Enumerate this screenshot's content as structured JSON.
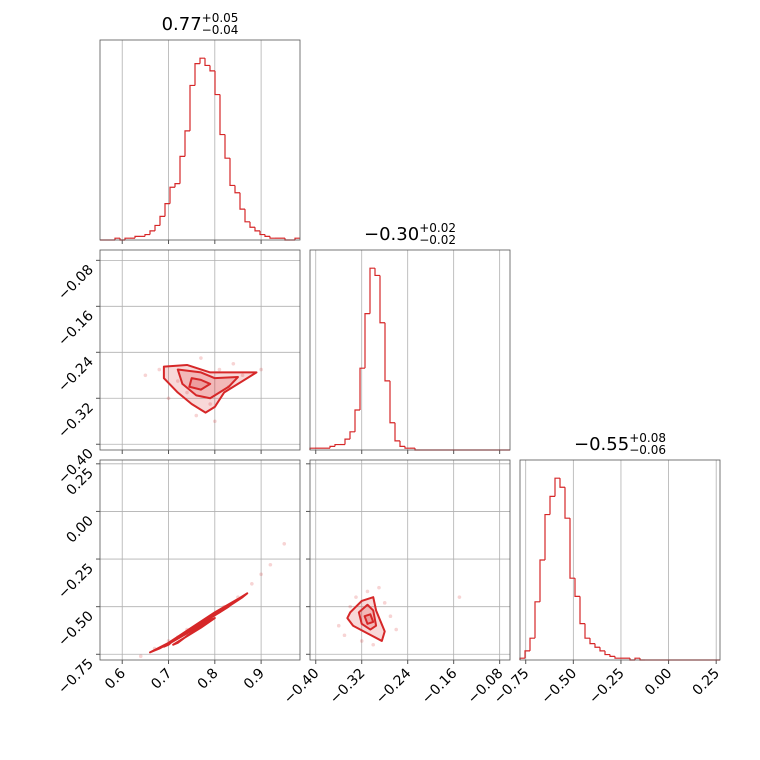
{
  "chart_data": {
    "type": "corner",
    "color": "#d62728",
    "grid": true,
    "hist_ylim": [
      0,
      110
    ],
    "params": [
      {
        "title": {
          "median": "0.77",
          "plus": "+0.05",
          "minus": "−0.04"
        },
        "lim": [
          0.552,
          0.984
        ],
        "ticks": [
          0.6,
          0.7,
          0.8,
          0.9
        ],
        "bins": [
          0.552,
          0.5628,
          0.5736,
          0.5844,
          0.5952,
          0.606,
          0.6168,
          0.6276,
          0.6384,
          0.6492,
          0.66,
          0.6708,
          0.6816,
          0.6924,
          0.7032,
          0.714,
          0.7248,
          0.7356,
          0.7464,
          0.7572,
          0.768,
          0.7788,
          0.7896,
          0.8004,
          0.8112,
          0.822,
          0.8328,
          0.8436,
          0.8544,
          0.8652,
          0.876,
          0.8868,
          0.8976,
          0.9084,
          0.9192,
          0.93,
          0.9408,
          0.9516,
          0.9624,
          0.9732,
          0.984
        ],
        "counts": [
          0,
          0,
          0,
          1,
          0,
          1,
          1,
          2,
          2,
          3,
          5,
          8,
          13,
          20,
          29,
          31,
          46,
          60,
          85,
          97,
          100,
          96,
          93,
          80,
          58,
          45,
          30,
          26,
          17,
          10,
          7,
          5,
          3,
          2,
          1,
          1,
          1,
          0,
          0,
          1
        ]
      },
      {
        "title": {
          "median": "−0.30",
          "plus": "+0.02",
          "minus": "−0.02"
        },
        "lim": [
          -0.41,
          -0.062
        ],
        "ticks": [
          {
            "value": -0.4,
            "label": "−0.40"
          },
          {
            "value": -0.32,
            "label": "−0.32"
          },
          {
            "value": -0.24,
            "label": "−0.24"
          },
          {
            "value": -0.16,
            "label": "−0.16"
          },
          {
            "value": -0.08,
            "label": "−0.08"
          }
        ],
        "bins": [
          -0.41,
          -0.4013,
          -0.3926,
          -0.3839,
          -0.3752,
          -0.3665,
          -0.3578,
          -0.3491,
          -0.3404,
          -0.3317,
          -0.323,
          -0.3143,
          -0.3056,
          -0.2969,
          -0.2882,
          -0.2795,
          -0.2708,
          -0.2621,
          -0.2534,
          -0.2447,
          -0.236,
          -0.2273,
          -0.2186,
          -0.2099,
          -0.2012,
          -0.1925,
          -0.1838,
          -0.1751,
          -0.1664,
          -0.1577,
          -0.149,
          -0.1403,
          -0.1316,
          -0.1229,
          -0.1142,
          -0.1055,
          -0.0968,
          -0.0881,
          -0.0794,
          -0.0707,
          -0.062
        ],
        "counts": [
          1,
          1,
          1,
          1,
          2,
          3,
          3,
          6,
          10,
          22,
          45,
          75,
          100,
          96,
          70,
          38,
          15,
          5,
          2,
          1,
          1,
          0,
          0,
          0,
          0,
          0,
          0,
          0,
          0,
          0,
          0,
          0,
          0,
          0,
          0,
          0,
          0,
          0,
          0,
          0
        ]
      },
      {
        "title": {
          "median": "−0.55",
          "plus": "+0.08",
          "minus": "−0.06"
        },
        "lim": [
          -0.78,
          0.27
        ],
        "ticks": [
          {
            "value": -0.75,
            "label": "−0.75"
          },
          {
            "value": -0.5,
            "label": "−0.50"
          },
          {
            "value": -0.25,
            "label": "−0.25"
          },
          {
            "value": 0,
            "label": "0.00"
          },
          0.25
        ],
        "bins": [
          -0.78,
          -0.75375,
          -0.7275,
          -0.70125,
          -0.675,
          -0.64875,
          -0.6225,
          -0.59625,
          -0.57,
          -0.54375,
          -0.5175,
          -0.49125,
          -0.465,
          -0.43875,
          -0.4125,
          -0.38625,
          -0.36,
          -0.33375,
          -0.3075,
          -0.28125,
          -0.255,
          -0.22875,
          -0.2025,
          -0.17625,
          -0.15,
          -0.12375,
          -0.0975,
          -0.07125,
          -0.045,
          -0.01875,
          0.0075,
          0.03375,
          0.06,
          0.08625,
          0.1125,
          0.13875,
          0.165,
          0.19125,
          0.2175,
          0.24375,
          0.27
        ],
        "counts": [
          1,
          5,
          12,
          32,
          55,
          80,
          90,
          100,
          95,
          78,
          45,
          35,
          20,
          12,
          9,
          7,
          5,
          3,
          2,
          1,
          1,
          1,
          0,
          1,
          0,
          0,
          0,
          0,
          0,
          0,
          0,
          0,
          0,
          0,
          0,
          0,
          0,
          0,
          0,
          0
        ]
      }
    ],
    "pairs": [
      {
        "points": {
          "x": [
            0.68,
            0.72,
            0.74,
            0.77,
            0.79,
            0.81,
            0.83,
            0.86,
            0.7,
            0.76,
            0.8,
            0.84,
            0.65,
            0.9
          ],
          "y": [
            -0.27,
            -0.29,
            -0.31,
            -0.25,
            -0.33,
            -0.27,
            -0.3,
            -0.28,
            -0.32,
            -0.35,
            -0.36,
            -0.26,
            -0.28,
            -0.27
          ]
        },
        "contours": [
          {
            "x": [
              0.69,
              0.74,
              0.79,
              0.84,
              0.89,
              0.85,
              0.82,
              0.8,
              0.78,
              0.75,
              0.72,
              0.69
            ],
            "y": [
              -0.265,
              -0.262,
              -0.275,
              -0.275,
              -0.275,
              -0.295,
              -0.31,
              -0.335,
              -0.345,
              -0.33,
              -0.31,
              -0.285
            ]
          },
          {
            "x": [
              0.72,
              0.77,
              0.8,
              0.85,
              0.83,
              0.79,
              0.76,
              0.73
            ],
            "y": [
              -0.27,
              -0.275,
              -0.285,
              -0.283,
              -0.3,
              -0.32,
              -0.315,
              -0.295
            ]
          },
          {
            "x": [
              0.75,
              0.77,
              0.79,
              0.77,
              0.745
            ],
            "y": [
              -0.285,
              -0.288,
              -0.295,
              -0.305,
              -0.3
            ]
          }
        ]
      },
      {
        "points": {
          "x": [
            0.64,
            0.67,
            0.7,
            0.72,
            0.74,
            0.78,
            0.82,
            0.85,
            0.88,
            0.9,
            0.92,
            0.95
          ],
          "y": [
            -0.76,
            -0.72,
            -0.68,
            -0.66,
            -0.62,
            -0.57,
            -0.5,
            -0.45,
            -0.38,
            -0.33,
            -0.28,
            -0.17
          ]
        },
        "contours": [
          {
            "x": [
              0.66,
              0.7,
              0.75,
              0.8,
              0.85,
              0.87,
              0.86,
              0.81,
              0.76,
              0.71,
              0.68
            ],
            "y": [
              -0.74,
              -0.69,
              -0.61,
              -0.53,
              -0.46,
              -0.43,
              -0.45,
              -0.53,
              -0.6,
              -0.68,
              -0.72
            ]
          },
          {
            "x": [
              0.69,
              0.74,
              0.79,
              0.83,
              0.82,
              0.77,
              0.72,
              0.7
            ],
            "y": [
              -0.71,
              -0.64,
              -0.56,
              -0.5,
              -0.51,
              -0.58,
              -0.66,
              -0.7
            ]
          },
          {
            "x": [
              0.72,
              0.78,
              0.8,
              0.77,
              0.71
            ],
            "y": [
              -0.69,
              -0.58,
              -0.56,
              -0.61,
              -0.7
            ]
          }
        ]
      },
      {
        "points": {
          "x": [
            -0.36,
            -0.34,
            -0.33,
            -0.31,
            -0.29,
            -0.27,
            -0.26,
            -0.3,
            -0.32,
            -0.28,
            -0.35,
            -0.15
          ],
          "y": [
            -0.6,
            -0.5,
            -0.45,
            -0.42,
            -0.4,
            -0.55,
            -0.62,
            -0.7,
            -0.68,
            -0.48,
            -0.65,
            -0.45
          ]
        },
        "contours": [
          {
            "x": [
              -0.34,
              -0.32,
              -0.3,
              -0.295,
              -0.28,
              -0.285,
              -0.31,
              -0.335,
              -0.345
            ],
            "y": [
              -0.53,
              -0.47,
              -0.45,
              -0.52,
              -0.63,
              -0.68,
              -0.64,
              -0.6,
              -0.56
            ]
          },
          {
            "x": [
              -0.325,
              -0.31,
              -0.3,
              -0.295,
              -0.305,
              -0.32
            ],
            "y": [
              -0.53,
              -0.49,
              -0.52,
              -0.6,
              -0.62,
              -0.59
            ]
          },
          {
            "x": [
              -0.315,
              -0.305,
              -0.3,
              -0.31
            ],
            "y": [
              -0.55,
              -0.54,
              -0.58,
              -0.59
            ]
          }
        ]
      }
    ]
  }
}
